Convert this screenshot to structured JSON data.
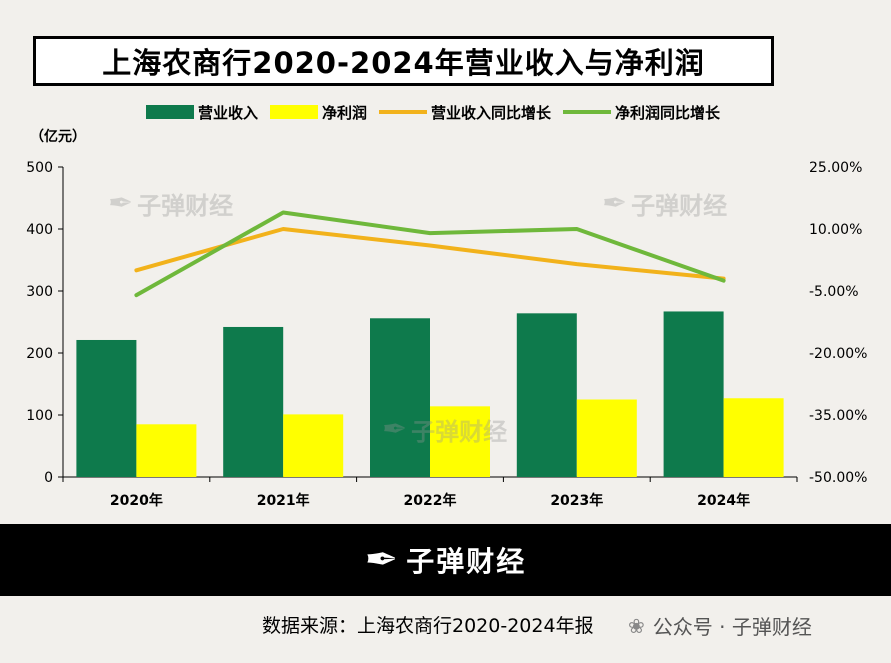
{
  "title": "上海农商行2020-2024年营业收入与净利润",
  "unit_label": "（亿元）",
  "legend": [
    {
      "name": "营业收入",
      "type": "bar",
      "color": "#0e7a4c"
    },
    {
      "name": "净利润",
      "type": "bar",
      "color": "#ffff00"
    },
    {
      "name": "营业收入同比增长",
      "type": "line",
      "color": "#f2b21b"
    },
    {
      "name": "净利润同比增长",
      "type": "line",
      "color": "#6fb83b"
    }
  ],
  "watermark": {
    "text": "子弹财经",
    "icon": "bullet-logo-icon"
  },
  "footer": {
    "brand": "子弹财经",
    "icon": "bullet-logo-icon"
  },
  "source": "数据来源：上海农商行2020-2024年报",
  "wechat": {
    "icon": "wechat-icon",
    "text": "公众号 · 子弹财经"
  },
  "chart_data": {
    "type": "bar",
    "categories": [
      "2020年",
      "2021年",
      "2022年",
      "2023年",
      "2024年"
    ],
    "series": [
      {
        "name": "营业收入",
        "type": "bar",
        "axis": "left",
        "color": "#0e7a4c",
        "values": [
          221,
          242,
          256,
          264,
          267
        ]
      },
      {
        "name": "净利润",
        "type": "bar",
        "axis": "left",
        "color": "#ffff00",
        "values": [
          85,
          101,
          114,
          125,
          127
        ]
      },
      {
        "name": "营业收入同比增长",
        "type": "line",
        "axis": "right",
        "color": "#f2b21b",
        "values": [
          0.0,
          0.1,
          0.06,
          0.015,
          -0.02
        ]
      },
      {
        "name": "净利润同比增长",
        "type": "line",
        "axis": "right",
        "color": "#6fb83b",
        "values": [
          -0.06,
          0.14,
          0.09,
          0.1,
          -0.025
        ]
      }
    ],
    "y_left": {
      "min": 0,
      "max": 500,
      "ticks": [
        0,
        100,
        200,
        300,
        400,
        500
      ],
      "tick_labels": [
        "0",
        "100",
        "200",
        "300",
        "400",
        "500"
      ]
    },
    "y_right": {
      "min": -0.5,
      "max": 0.25,
      "ticks": [
        -0.5,
        -0.35,
        -0.2,
        -0.05,
        0.1,
        0.25
      ],
      "tick_labels": [
        "-50.00%",
        "-35.00%",
        "-20.00%",
        "-5.00%",
        "10.00%",
        "25.00%"
      ]
    },
    "grid": false,
    "legend_position": "top"
  }
}
